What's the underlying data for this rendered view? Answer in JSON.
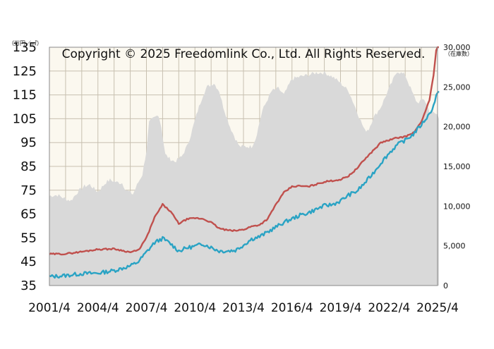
{
  "chart_data": {
    "type": "line",
    "title": "",
    "copyright": "Copyright © 2025 Freedomlink Co., Ltd. All Rights Reserved.",
    "y_left_unit": "（万円／㎡）",
    "y_right_unit": "（在庫数）",
    "y_left_ticks": [
      "135",
      "125",
      "115",
      "105",
      "95",
      "85",
      "75",
      "65",
      "55",
      "45",
      "35"
    ],
    "y_right_ticks": [
      "30,000",
      "25,000",
      "20,000",
      "15,000",
      "10,000",
      "5,000",
      "0"
    ],
    "x_ticks": [
      "2001/4",
      "2004/4",
      "2007/4",
      "2010/4",
      "2013/4",
      "2016/4",
      "2019/4",
      "2022/4",
      "2025/4"
    ],
    "x_range": [
      "2001-04",
      "2025-04"
    ],
    "ylim_left": [
      35,
      135
    ],
    "ylim_right": [
      0,
      30000
    ],
    "grid": true,
    "colors": {
      "inventory_area": "#d9d9d9",
      "new_listing_price": "#c0504d",
      "contract_price": "#2aa3c4",
      "plot_background": "#fbf8ef",
      "grid": "#c8c0b0"
    },
    "series": [
      {
        "key": "inventory",
        "axis": "right",
        "kind": "area",
        "points": [
          [
            "2001-04",
            11300
          ],
          [
            "2001-10",
            11400
          ],
          [
            "2002-04",
            10900
          ],
          [
            "2002-08",
            10700
          ],
          [
            "2003-01",
            11800
          ],
          [
            "2003-06",
            12500
          ],
          [
            "2003-10",
            12700
          ],
          [
            "2004-01",
            12200
          ],
          [
            "2004-04",
            11800
          ],
          [
            "2004-07",
            12400
          ],
          [
            "2004-10",
            13000
          ],
          [
            "2005-01",
            13300
          ],
          [
            "2005-06",
            13000
          ],
          [
            "2005-10",
            12900
          ],
          [
            "2006-01",
            12000
          ],
          [
            "2006-06",
            11500
          ],
          [
            "2006-10",
            13000
          ],
          [
            "2007-01",
            14000
          ],
          [
            "2007-04",
            17000
          ],
          [
            "2007-06",
            20500
          ],
          [
            "2007-09",
            21000
          ],
          [
            "2008-01",
            21500
          ],
          [
            "2008-03",
            20000
          ],
          [
            "2008-06",
            16500
          ],
          [
            "2008-09",
            16000
          ],
          [
            "2009-01",
            15600
          ],
          [
            "2009-06",
            16200
          ],
          [
            "2009-10",
            17500
          ],
          [
            "2010-01",
            19000
          ],
          [
            "2010-06",
            22000
          ],
          [
            "2010-10",
            24000
          ],
          [
            "2011-01",
            25000
          ],
          [
            "2011-06",
            25500
          ],
          [
            "2011-10",
            24500
          ],
          [
            "2012-01",
            22500
          ],
          [
            "2012-06",
            20000
          ],
          [
            "2012-10",
            18500
          ],
          [
            "2013-01",
            17500
          ],
          [
            "2013-06",
            17500
          ],
          [
            "2013-10",
            17500
          ],
          [
            "2014-01",
            18500
          ],
          [
            "2014-06",
            22000
          ],
          [
            "2014-10",
            23500
          ],
          [
            "2015-01",
            24500
          ],
          [
            "2015-06",
            24800
          ],
          [
            "2015-10",
            24000
          ],
          [
            "2016-04",
            26000
          ],
          [
            "2016-10",
            26300
          ],
          [
            "2017-04",
            26500
          ],
          [
            "2017-10",
            26800
          ],
          [
            "2018-04",
            26800
          ],
          [
            "2018-10",
            26300
          ],
          [
            "2019-04",
            25500
          ],
          [
            "2019-10",
            24500
          ],
          [
            "2020-04",
            22000
          ],
          [
            "2020-10",
            19500
          ],
          [
            "2021-01",
            19700
          ],
          [
            "2021-04",
            21000
          ],
          [
            "2021-10",
            22500
          ],
          [
            "2022-04",
            24800
          ],
          [
            "2022-10",
            27000
          ],
          [
            "2023-04",
            26500
          ],
          [
            "2023-10",
            24000
          ],
          [
            "2024-01",
            23000
          ],
          [
            "2024-06",
            23500
          ],
          [
            "2024-10",
            22000
          ],
          [
            "2025-04",
            21500
          ],
          [
            "2025-05",
            21000
          ]
        ]
      },
      {
        "key": "new_listing_price",
        "axis": "left",
        "kind": "line",
        "points": [
          [
            "2001-04",
            48.2
          ],
          [
            "2002-04",
            48.3
          ],
          [
            "2003-04",
            49.2
          ],
          [
            "2004-04",
            50.2
          ],
          [
            "2005-04",
            50.4
          ],
          [
            "2006-04",
            49.0
          ],
          [
            "2006-10",
            49.8
          ],
          [
            "2007-04",
            55.0
          ],
          [
            "2007-10",
            63.5
          ],
          [
            "2008-04",
            69.0
          ],
          [
            "2008-10",
            66.0
          ],
          [
            "2009-04",
            61.0
          ],
          [
            "2009-10",
            62.8
          ],
          [
            "2010-04",
            63.3
          ],
          [
            "2010-10",
            63.0
          ],
          [
            "2011-04",
            61.5
          ],
          [
            "2011-10",
            59.0
          ],
          [
            "2012-04",
            58.2
          ],
          [
            "2012-10",
            58.0
          ],
          [
            "2013-04",
            58.5
          ],
          [
            "2013-10",
            59.8
          ],
          [
            "2014-04",
            60.5
          ],
          [
            "2014-10",
            63.0
          ],
          [
            "2015-04",
            69.0
          ],
          [
            "2015-10",
            74.0
          ],
          [
            "2016-04",
            76.5
          ],
          [
            "2016-10",
            76.8
          ],
          [
            "2017-04",
            76.5
          ],
          [
            "2017-10",
            77.5
          ],
          [
            "2018-04",
            78.5
          ],
          [
            "2018-10",
            79.0
          ],
          [
            "2019-04",
            79.5
          ],
          [
            "2019-10",
            81.0
          ],
          [
            "2020-04",
            84.0
          ],
          [
            "2020-10",
            88.0
          ],
          [
            "2021-04",
            91.5
          ],
          [
            "2021-10",
            95.0
          ],
          [
            "2022-04",
            96.0
          ],
          [
            "2022-10",
            97.0
          ],
          [
            "2023-04",
            97.5
          ],
          [
            "2023-10",
            99.0
          ],
          [
            "2024-04",
            103.5
          ],
          [
            "2024-10",
            113.0
          ],
          [
            "2025-01",
            123.0
          ],
          [
            "2025-03",
            134.0
          ],
          [
            "2025-05",
            138.0
          ]
        ]
      },
      {
        "key": "contract_price",
        "axis": "left",
        "kind": "line",
        "points": [
          [
            "2001-04",
            38.7
          ],
          [
            "2002-04",
            39.2
          ],
          [
            "2003-04",
            40.0
          ],
          [
            "2004-04",
            40.2
          ],
          [
            "2005-04",
            41.3
          ],
          [
            "2006-04",
            43.2
          ],
          [
            "2006-10",
            45.0
          ],
          [
            "2007-04",
            49.0
          ],
          [
            "2007-10",
            53.0
          ],
          [
            "2008-04",
            54.8
          ],
          [
            "2008-10",
            52.5
          ],
          [
            "2009-04",
            49.5
          ],
          [
            "2009-10",
            50.8
          ],
          [
            "2010-04",
            51.5
          ],
          [
            "2010-10",
            52.5
          ],
          [
            "2011-04",
            51.0
          ],
          [
            "2011-10",
            49.5
          ],
          [
            "2012-04",
            49.5
          ],
          [
            "2012-10",
            49.8
          ],
          [
            "2013-04",
            52.0
          ],
          [
            "2013-10",
            54.5
          ],
          [
            "2014-04",
            55.5
          ],
          [
            "2014-10",
            57.5
          ],
          [
            "2015-04",
            59.5
          ],
          [
            "2015-10",
            61.5
          ],
          [
            "2016-04",
            63.0
          ],
          [
            "2016-10",
            64.5
          ],
          [
            "2017-04",
            65.5
          ],
          [
            "2017-10",
            67.0
          ],
          [
            "2018-04",
            68.5
          ],
          [
            "2018-10",
            69.0
          ],
          [
            "2019-04",
            70.5
          ],
          [
            "2019-10",
            73.0
          ],
          [
            "2020-04",
            74.5
          ],
          [
            "2020-10",
            78.0
          ],
          [
            "2021-04",
            82.0
          ],
          [
            "2021-10",
            86.5
          ],
          [
            "2022-04",
            90.5
          ],
          [
            "2022-10",
            94.0
          ],
          [
            "2023-04",
            96.0
          ],
          [
            "2023-10",
            98.5
          ],
          [
            "2024-04",
            102.5
          ],
          [
            "2024-10",
            107.0
          ],
          [
            "2025-01",
            110.5
          ],
          [
            "2025-03",
            114.5
          ],
          [
            "2025-05",
            116.5
          ]
        ]
      }
    ]
  }
}
